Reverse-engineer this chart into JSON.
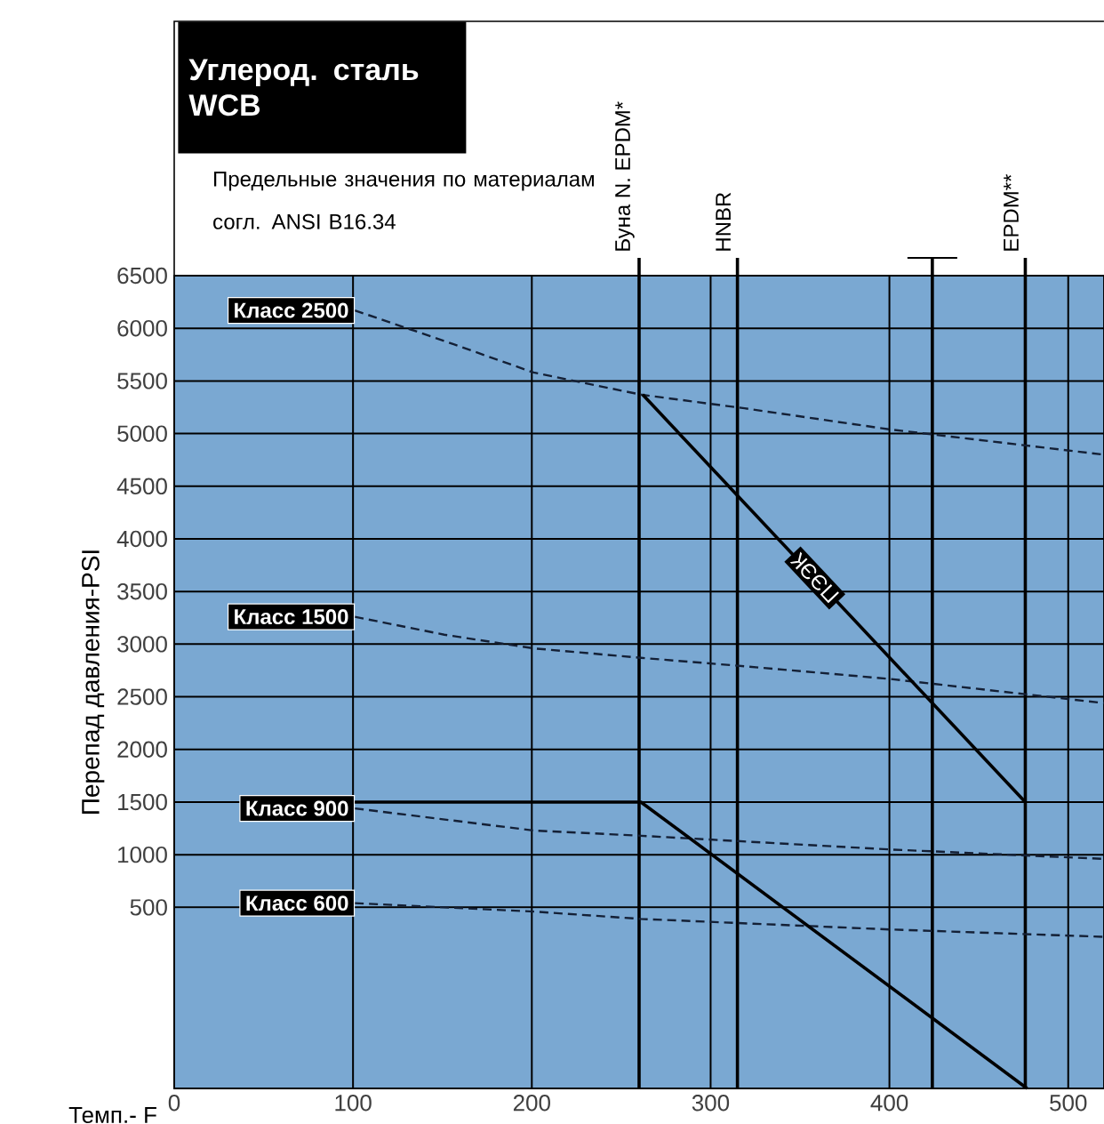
{
  "chart_data": {
    "type": "line",
    "title": "Углерод. сталь WCB",
    "subtitle": "Предельные значения по материалам согл. ANSI B16.34",
    "xlabel": "Темп.- F",
    "ylabel": "Перепад давления-PSI",
    "xlim": [
      0,
      520
    ],
    "xticks": [
      0,
      100,
      200,
      300,
      400,
      500
    ],
    "ylim": [
      -1220,
      6500
    ],
    "yticks": [
      500,
      1000,
      1500,
      2000,
      2500,
      3000,
      3500,
      4000,
      4500,
      5000,
      5500,
      6000,
      6500
    ],
    "grid": true,
    "marker": "none",
    "series": [
      {
        "name": "Класс 2500",
        "color": "#142036",
        "line_style": "dashed",
        "x": [
          101,
          151,
          201,
          261,
          319,
          400,
          520
        ],
        "values": [
          6170,
          5880,
          5580,
          5370,
          5240,
          5040,
          4800
        ]
      },
      {
        "name": "Класс 1500",
        "color": "#142036",
        "line_style": "dashed",
        "x": [
          101,
          151,
          201,
          261,
          319,
          400,
          520
        ],
        "values": [
          3260,
          3090,
          2960,
          2870,
          2790,
          2670,
          2440
        ]
      },
      {
        "name": "Класс 900",
        "color": "#142036",
        "line_style": "dashed",
        "x": [
          101,
          201,
          261,
          400,
          520
        ],
        "values": [
          1440,
          1230,
          1180,
          1050,
          960
        ]
      },
      {
        "name": "Класс 600",
        "color": "#142036",
        "line_style": "dashed",
        "x": [
          101,
          201,
          261,
          400,
          520
        ],
        "values": [
          540,
          460,
          390,
          290,
          220
        ]
      },
      {
        "color": "#000000",
        "line_style": "solid",
        "x": [
          101,
          261,
          477
        ],
        "values": [
          1500,
          1500,
          -1220
        ]
      },
      {
        "name": "ПЭЭК",
        "color": "#000000",
        "line_style": "solid",
        "x": [
          262,
          476
        ],
        "values": [
          5370,
          1500
        ]
      }
    ],
    "ref_lines": [
      {
        "axis": "x",
        "value": 260,
        "label": "Буна N. EPDM*"
      },
      {
        "axis": "x",
        "value": 315,
        "label": "HNBR"
      },
      {
        "axis": "x",
        "value": 424
      },
      {
        "axis": "x",
        "value": 476,
        "label": "EPDM**"
      }
    ]
  }
}
